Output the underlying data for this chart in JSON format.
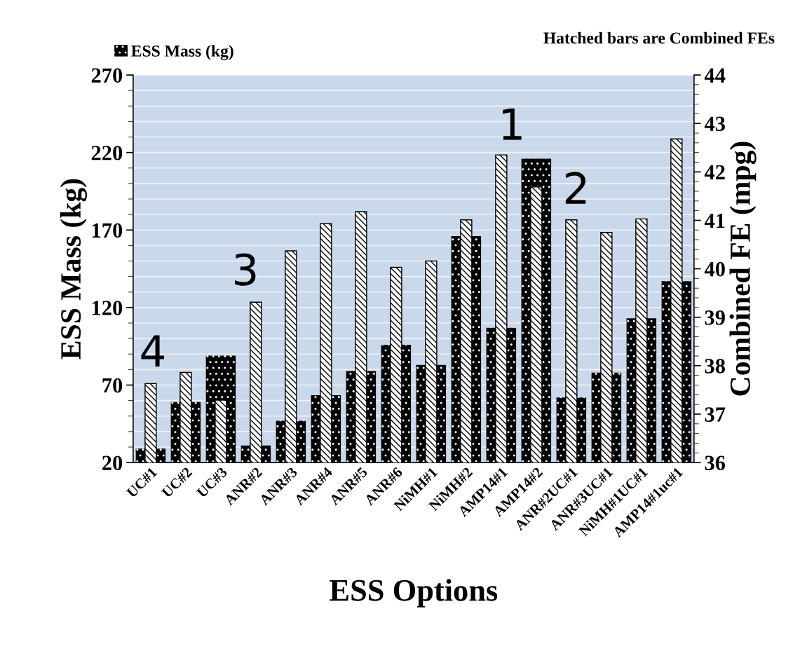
{
  "chart_data": {
    "type": "bar",
    "xlabel": "ESS Options",
    "ylabel": "ESS Mass (kg)",
    "y2label": "Combined FE (mpg)",
    "categories": [
      "UC#1",
      "UC#2",
      "UC#3",
      "ANR#2",
      "ANR#3",
      "ANR#4",
      "ANR#5",
      "ANR#6",
      "NiMH#1",
      "NiMH#2",
      "AMP14#1",
      "AMP14#2",
      "ANR#2UC#1",
      "ANR#3UC#1",
      "NiMH#1UC#1",
      "AMP14#1uc#1"
    ],
    "series": [
      {
        "name": "ESS Mass (kg)",
        "color": "#000000",
        "values": [
          29,
          59,
          89,
          31,
          47,
          63.5,
          79,
          96,
          83,
          166,
          107,
          216,
          62,
          78,
          113,
          137
        ]
      },
      {
        "color": "#000000",
        "axis": "y2",
        "values": [
          37.63,
          37.86,
          37.29,
          39.31,
          40.37,
          40.93,
          41.18,
          40.03,
          40.16,
          41.01,
          42.35,
          41.69,
          41.01,
          40.75,
          41.03,
          42.68
        ]
      }
    ],
    "ylim": [
      20,
      270
    ],
    "yticks": [
      20,
      70,
      120,
      170,
      220,
      270
    ],
    "y2lim": [
      36,
      44
    ],
    "y2ticks": [
      36,
      37,
      38,
      39,
      40,
      41,
      42,
      43,
      44
    ],
    "grid": "y",
    "legend": "top left",
    "annotations": [
      "Hatched bars are Combined FEs",
      "1",
      "2",
      "3",
      "4"
    ]
  }
}
